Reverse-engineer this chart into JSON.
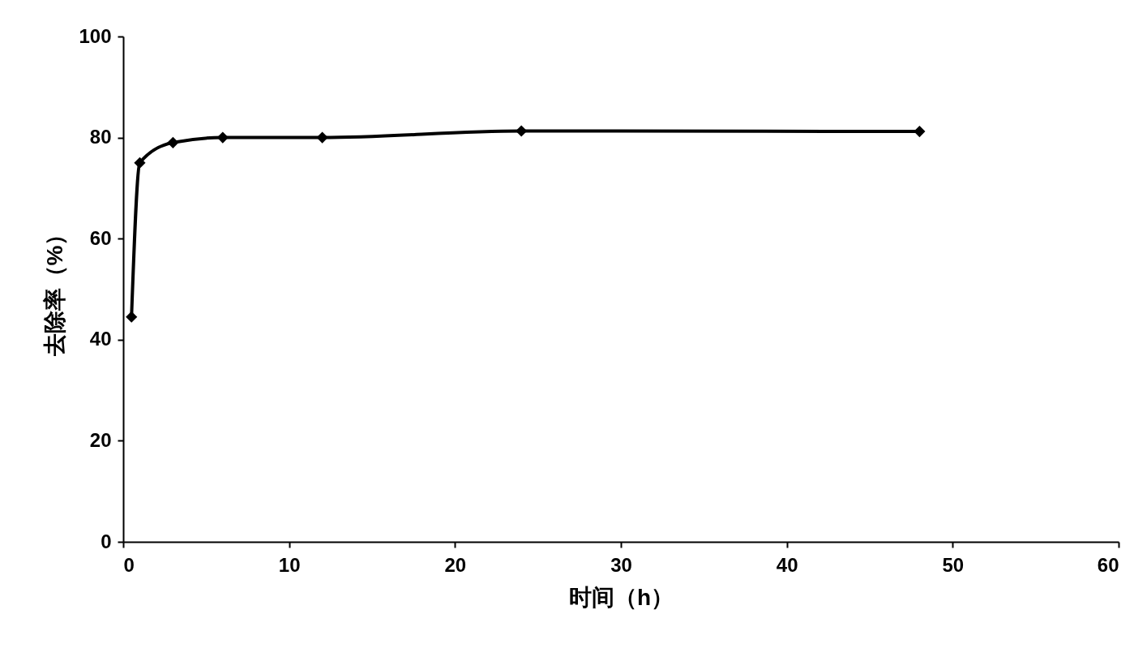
{
  "chart_data": {
    "type": "line",
    "xlabel": "时间（h）",
    "ylabel": "去除率（%）",
    "x": [
      0.5,
      1,
      3,
      6,
      12,
      24,
      48
    ],
    "series": [
      {
        "color": "#000000",
        "values": [
          44.5,
          75,
          79,
          80,
          80,
          81.3,
          81.2
        ]
      }
    ],
    "xlim": [
      0,
      60
    ],
    "xticks": [
      0,
      10,
      20,
      30,
      40,
      50,
      60
    ],
    "ylim": [
      0,
      100
    ],
    "yticks": [
      0,
      20,
      40,
      60,
      80,
      100
    ],
    "grid": false,
    "marker": "diamond",
    "line_style": "solid"
  }
}
